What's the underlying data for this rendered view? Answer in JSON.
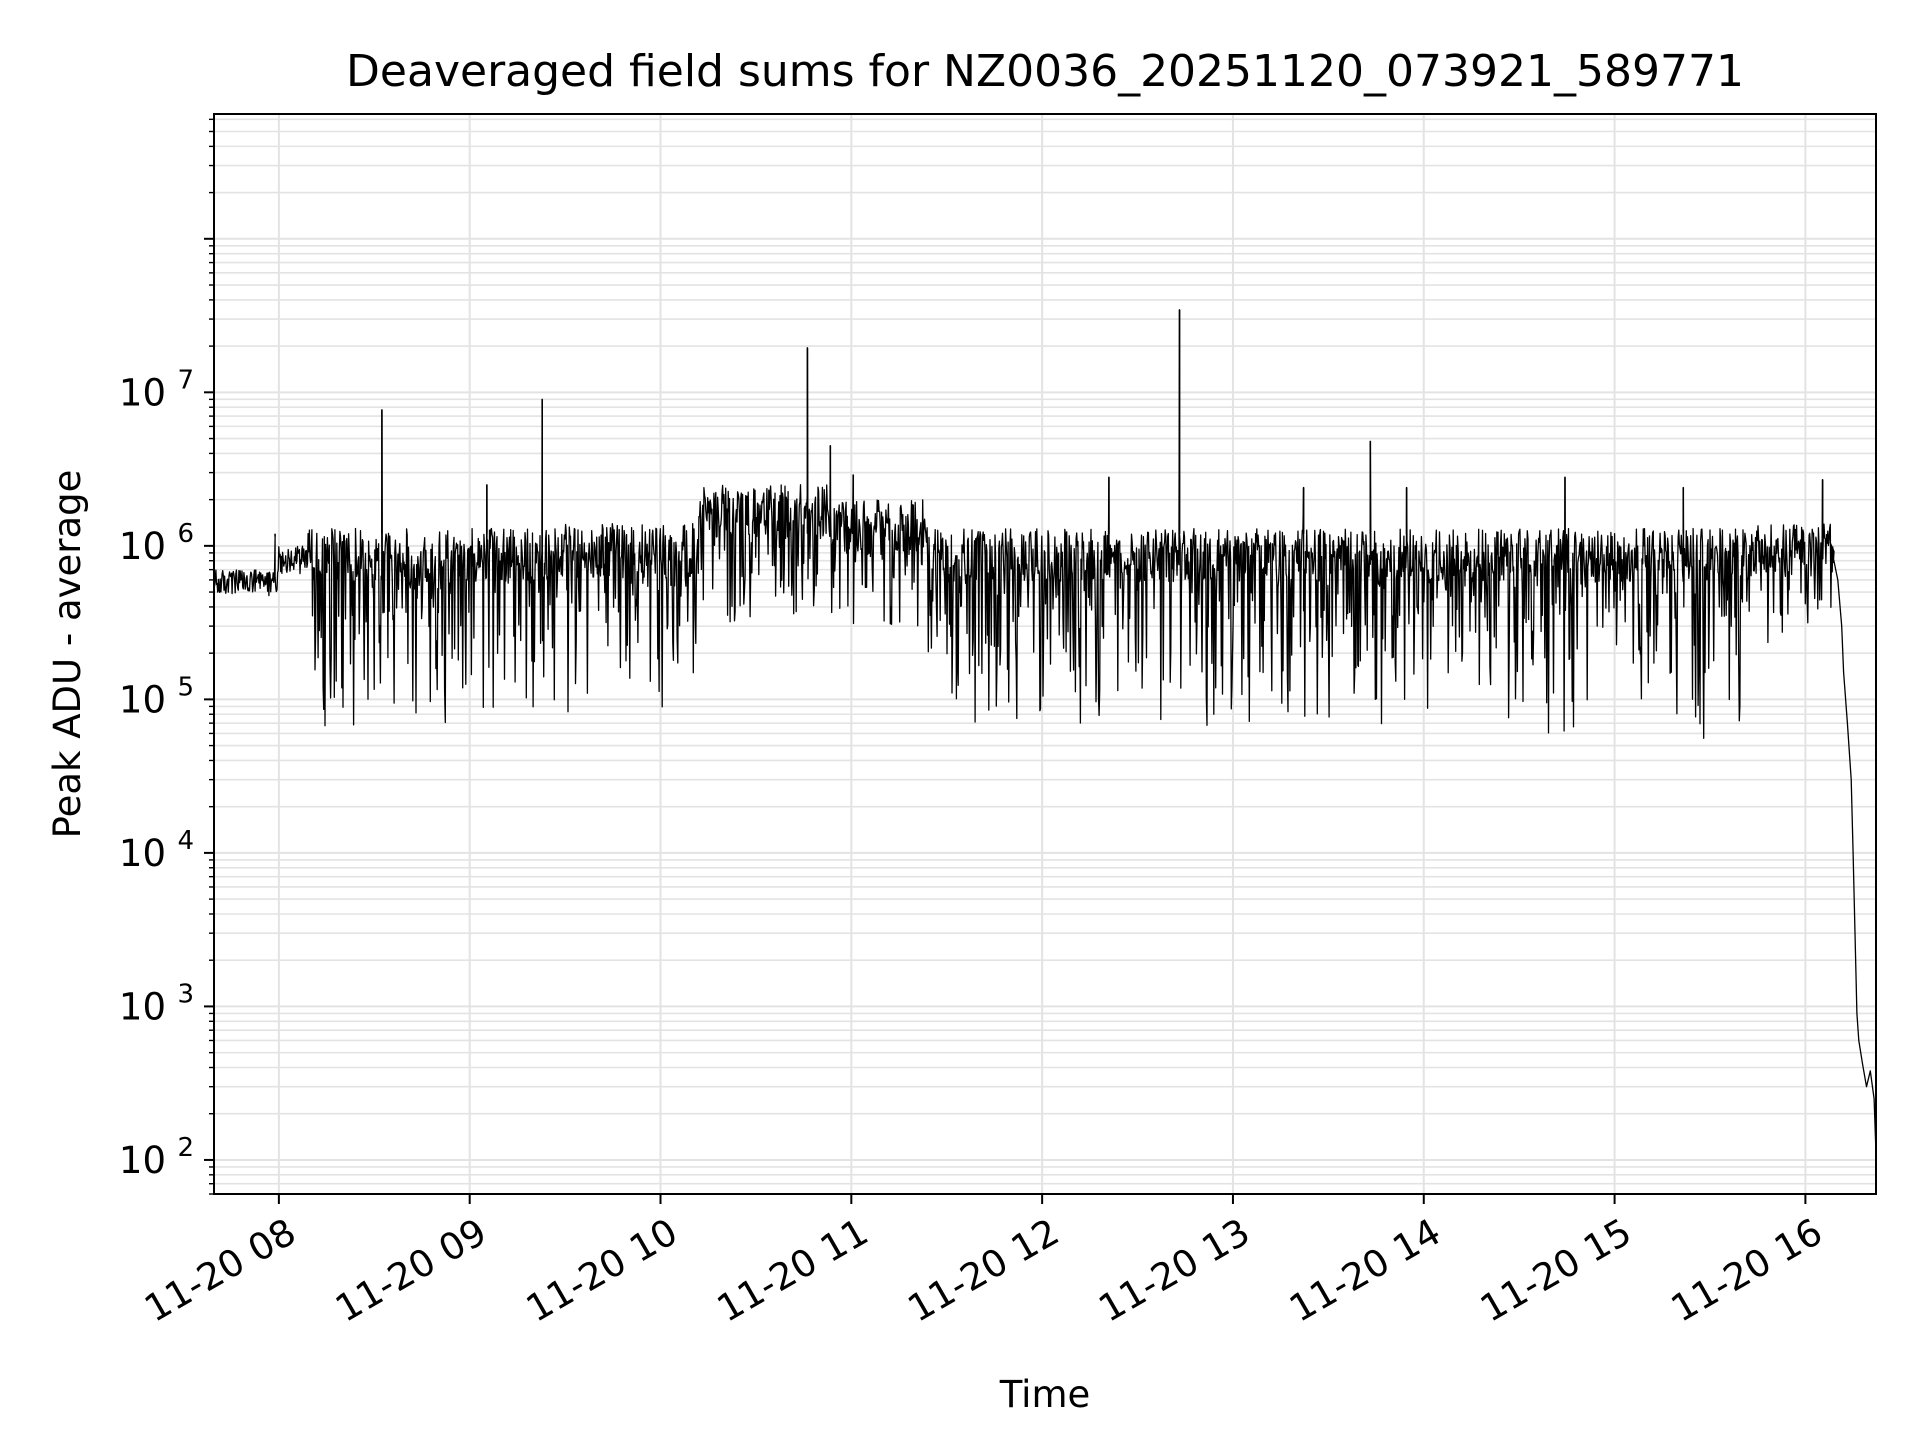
{
  "chart_data": {
    "type": "line",
    "title": "Deaveraged field sums for NZ0036_20251120_073921_589771",
    "xlabel": "Time",
    "ylabel": "Peak ADU - average",
    "yscale": "log",
    "ylim": [
      60,
      650000000
    ],
    "xlim_hours": [
      7.66,
      16.37
    ],
    "grid": true,
    "line_color": "#000000",
    "grid_color": "#e3e3e3",
    "x_ticks": [
      {
        "hour": 8,
        "label": "11-20 08"
      },
      {
        "hour": 9,
        "label": "11-20 09"
      },
      {
        "hour": 10,
        "label": "11-20 10"
      },
      {
        "hour": 11,
        "label": "11-20 11"
      },
      {
        "hour": 12,
        "label": "11-20 12"
      },
      {
        "hour": 13,
        "label": "11-20 13"
      },
      {
        "hour": 14,
        "label": "11-20 14"
      },
      {
        "hour": 15,
        "label": "11-20 15"
      },
      {
        "hour": 16,
        "label": "11-20 16"
      }
    ],
    "y_ticks": [
      {
        "exp": 2,
        "base": "10",
        "sup": "2"
      },
      {
        "exp": 3,
        "base": "10",
        "sup": "3"
      },
      {
        "exp": 4,
        "base": "10",
        "sup": "4"
      },
      {
        "exp": 5,
        "base": "10",
        "sup": "5"
      },
      {
        "exp": 6,
        "base": "10",
        "sup": "6"
      },
      {
        "exp": 7,
        "base": "10",
        "sup": "7"
      }
    ],
    "segments": [
      {
        "t0": 7.66,
        "t1": 7.99,
        "upper": 700000,
        "lower": 400000
      },
      {
        "t0": 7.99,
        "t1": 8.15,
        "upper": 1000000,
        "lower": 550000
      },
      {
        "t0": 8.15,
        "t1": 9.5,
        "upper": 1300000,
        "lower": 60000
      },
      {
        "t0": 9.5,
        "t1": 10.2,
        "upper": 1400000,
        "lower": 80000
      },
      {
        "t0": 10.2,
        "t1": 10.9,
        "upper": 2500000,
        "lower": 250000
      },
      {
        "t0": 10.9,
        "t1": 11.4,
        "upper": 2000000,
        "lower": 200000
      },
      {
        "t0": 11.4,
        "t1": 12.5,
        "upper": 1300000,
        "lower": 60000
      },
      {
        "t0": 12.5,
        "t1": 15.7,
        "upper": 1300000,
        "lower": 55000
      },
      {
        "t0": 15.7,
        "t1": 16.15,
        "upper": 1400000,
        "lower": 200000
      }
    ],
    "spikes": [
      {
        "t": 7.98,
        "y": 1150000
      },
      {
        "t": 8.54,
        "y": 7700000
      },
      {
        "t": 9.09,
        "y": 2500000
      },
      {
        "t": 9.38,
        "y": 9000000
      },
      {
        "t": 10.77,
        "y": 19500000
      },
      {
        "t": 10.89,
        "y": 4500000
      },
      {
        "t": 11.01,
        "y": 2900000
      },
      {
        "t": 12.35,
        "y": 2800000
      },
      {
        "t": 12.72,
        "y": 34500000
      },
      {
        "t": 13.37,
        "y": 2400000
      },
      {
        "t": 13.72,
        "y": 4800000
      },
      {
        "t": 13.91,
        "y": 2400000
      },
      {
        "t": 14.74,
        "y": 2800000
      },
      {
        "t": 15.36,
        "y": 2400000
      },
      {
        "t": 16.09,
        "y": 2700000
      }
    ],
    "tail": [
      {
        "t": 16.13,
        "y": 1050000
      },
      {
        "t": 16.17,
        "y": 600000
      },
      {
        "t": 16.19,
        "y": 300000
      },
      {
        "t": 16.2,
        "y": 150000
      },
      {
        "t": 16.22,
        "y": 70000
      },
      {
        "t": 16.24,
        "y": 30000
      },
      {
        "t": 16.25,
        "y": 10000
      },
      {
        "t": 16.26,
        "y": 3000
      },
      {
        "t": 16.27,
        "y": 900
      },
      {
        "t": 16.28,
        "y": 600
      },
      {
        "t": 16.3,
        "y": 420
      },
      {
        "t": 16.32,
        "y": 300
      },
      {
        "t": 16.34,
        "y": 380
      },
      {
        "t": 16.36,
        "y": 250
      },
      {
        "t": 16.37,
        "y": 110
      }
    ]
  }
}
